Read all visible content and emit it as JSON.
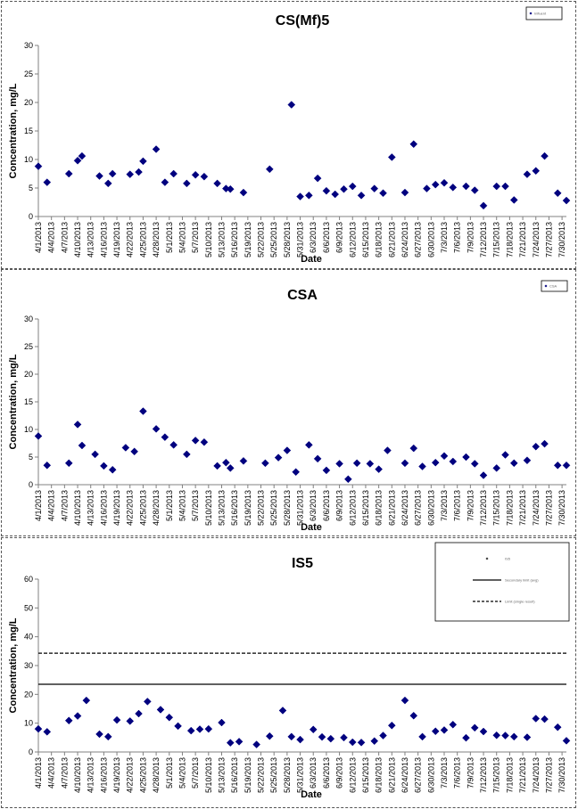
{
  "chart_data": [
    {
      "type": "scatter",
      "title": "CS(Mf)5",
      "xlabel": "Date",
      "ylabel": "Concentration, mg/L",
      "ylim": [
        0,
        30
      ],
      "yticks": [
        0,
        5,
        10,
        15,
        20,
        25,
        30
      ],
      "xlim": [
        "4/1/2013",
        "7/31/2013"
      ],
      "xtick_labels": [
        "4/1/2013",
        "4/4/2013",
        "4/7/2013",
        "4/10/2013",
        "4/13/2013",
        "4/16/2013",
        "4/19/2013",
        "4/22/2013",
        "4/25/2013",
        "4/28/2013",
        "5/1/2013",
        "5/4/2013",
        "5/7/2013",
        "5/10/2013",
        "5/13/2013",
        "5/16/2013",
        "5/19/2013",
        "5/22/2013",
        "5/25/2013",
        "5/28/2013",
        "5/31/2013",
        "6/3/2013",
        "6/6/2013",
        "6/9/2013",
        "6/12/2013",
        "6/15/2013",
        "6/18/2013",
        "6/21/2013",
        "6/24/2013",
        "6/27/2013",
        "6/30/2013",
        "7/3/2013",
        "7/6/2013",
        "7/9/2013",
        "7/12/2013",
        "7/15/2013",
        "7/18/2013",
        "7/21/2013",
        "7/24/2013",
        "7/27/2013",
        "7/30/2013"
      ],
      "legend": {
        "position": "top-right",
        "entries": [
          "Influent"
        ]
      },
      "marker_color": "#00007f",
      "series": [
        {
          "x": [
            "4/1/2013",
            "4/3/2013",
            "4/8/2013",
            "4/10/2013",
            "4/11/2013",
            "4/15/2013",
            "4/17/2013",
            "4/18/2013",
            "4/22/2013",
            "4/24/2013",
            "4/25/2013",
            "4/28/2013",
            "4/30/2013",
            "5/2/2013",
            "5/5/2013",
            "5/7/2013",
            "5/9/2013",
            "5/12/2013",
            "5/14/2013",
            "5/15/2013",
            "5/18/2013",
            "5/24/2013",
            "5/29/2013",
            "5/31/2013",
            "6/2/2013",
            "6/4/2013",
            "6/6/2013",
            "6/8/2013",
            "6/10/2013",
            "6/12/2013",
            "6/14/2013",
            "6/17/2013",
            "6/19/2013",
            "6/21/2013",
            "6/24/2013",
            "6/26/2013",
            "6/29/2013",
            "7/1/2013",
            "7/3/2013",
            "7/5/2013",
            "7/8/2013",
            "7/10/2013",
            "7/12/2013",
            "7/15/2013",
            "7/17/2013",
            "7/19/2013",
            "7/22/2013",
            "7/24/2013",
            "7/26/2013",
            "7/29/2013",
            "7/31/2013"
          ],
          "y": [
            8.8,
            6.0,
            7.5,
            9.8,
            10.6,
            7.1,
            5.8,
            7.5,
            7.4,
            7.8,
            9.7,
            11.8,
            6.0,
            7.5,
            5.8,
            7.3,
            7.0,
            5.8,
            4.9,
            4.8,
            4.2,
            8.3,
            19.6,
            3.5,
            3.7,
            6.7,
            4.5,
            3.9,
            4.8,
            5.3,
            3.7,
            4.9,
            4.1,
            10.4,
            4.2,
            12.7,
            4.9,
            5.6,
            5.9,
            5.1,
            5.3,
            4.6,
            1.9,
            5.3,
            5.3,
            2.9,
            7.4,
            8.0,
            10.6,
            4.1,
            2.8
          ]
        }
      ]
    },
    {
      "type": "scatter",
      "title": "CSA",
      "xlabel": "Date",
      "ylabel": "Concentration, mg/L",
      "ylim": [
        0,
        30
      ],
      "yticks": [
        0,
        5,
        10,
        15,
        20,
        25,
        30
      ],
      "xlim": [
        "4/1/2013",
        "7/31/2013"
      ],
      "xtick_labels": [
        "4/1/2013",
        "4/4/2013",
        "4/7/2013",
        "4/10/2013",
        "4/13/2013",
        "4/16/2013",
        "4/19/2013",
        "4/22/2013",
        "4/25/2013",
        "4/28/2013",
        "5/1/2013",
        "5/4/2013",
        "5/7/2013",
        "5/10/2013",
        "5/13/2013",
        "5/16/2013",
        "5/19/2013",
        "5/22/2013",
        "5/25/2013",
        "5/28/2013",
        "5/31/2013",
        "6/3/2013",
        "6/6/2013",
        "6/9/2013",
        "6/12/2013",
        "6/15/2013",
        "6/18/2013",
        "6/21/2013",
        "6/24/2013",
        "6/27/2013",
        "6/30/2013",
        "7/3/2013",
        "7/6/2013",
        "7/9/2013",
        "7/12/2013",
        "7/15/2013",
        "7/18/2013",
        "7/21/2013",
        "7/24/2013",
        "7/27/2013",
        "7/30/2013"
      ],
      "legend": {
        "position": "top-right",
        "entries": [
          "CSA"
        ]
      },
      "marker_color": "#00007f",
      "series": [
        {
          "x": [
            "4/1/2013",
            "4/3/2013",
            "4/8/2013",
            "4/10/2013",
            "4/11/2013",
            "4/14/2013",
            "4/16/2013",
            "4/18/2013",
            "4/21/2013",
            "4/23/2013",
            "4/25/2013",
            "4/28/2013",
            "4/30/2013",
            "5/2/2013",
            "5/5/2013",
            "5/7/2013",
            "5/9/2013",
            "5/12/2013",
            "5/14/2013",
            "5/15/2013",
            "5/18/2013",
            "5/23/2013",
            "5/26/2013",
            "5/28/2013",
            "5/30/2013",
            "6/2/2013",
            "6/4/2013",
            "6/6/2013",
            "6/9/2013",
            "6/11/2013",
            "6/13/2013",
            "6/16/2013",
            "6/18/2013",
            "6/20/2013",
            "6/24/2013",
            "6/26/2013",
            "6/28/2013",
            "7/1/2013",
            "7/3/2013",
            "7/5/2013",
            "7/8/2013",
            "7/10/2013",
            "7/12/2013",
            "7/15/2013",
            "7/17/2013",
            "7/19/2013",
            "7/22/2013",
            "7/24/2013",
            "7/26/2013",
            "7/29/2013",
            "7/31/2013"
          ],
          "y": [
            8.8,
            3.5,
            3.9,
            10.9,
            7.1,
            5.5,
            3.4,
            2.7,
            6.7,
            6.0,
            13.3,
            10.1,
            8.6,
            7.2,
            5.5,
            8.0,
            7.7,
            3.4,
            4.0,
            3.0,
            4.3,
            3.9,
            4.9,
            6.2,
            2.3,
            7.2,
            4.7,
            2.6,
            3.8,
            1.0,
            3.9,
            3.8,
            2.8,
            6.2,
            3.9,
            6.6,
            3.3,
            4.0,
            5.2,
            4.2,
            5.0,
            3.8,
            1.7,
            3.0,
            5.4,
            3.9,
            4.4,
            6.9,
            7.4,
            3.5,
            3.5
          ]
        }
      ]
    },
    {
      "type": "scatter",
      "title": "IS5",
      "xlabel": "Date",
      "ylabel": "Concentration, mg/L",
      "ylim": [
        0,
        60
      ],
      "yticks": [
        0,
        10,
        20,
        30,
        40,
        50,
        60
      ],
      "xlim": [
        "4/1/2013",
        "7/31/2013"
      ],
      "xtick_labels": [
        "4/1/2013",
        "4/4/2013",
        "4/7/2013",
        "4/10/2013",
        "4/13/2013",
        "4/16/2013",
        "4/19/2013",
        "4/22/2013",
        "4/25/2013",
        "4/28/2013",
        "5/1/2013",
        "5/4/2013",
        "5/7/2013",
        "5/10/2013",
        "5/13/2013",
        "5/16/2013",
        "5/19/2013",
        "5/22/2013",
        "5/25/2013",
        "5/28/2013",
        "5/31/2013",
        "6/3/2013",
        "6/6/2013",
        "6/9/2013",
        "6/12/2013",
        "6/15/2013",
        "6/18/2013",
        "6/21/2013",
        "6/24/2013",
        "6/27/2013",
        "6/30/2013",
        "7/3/2013",
        "7/6/2013",
        "7/9/2013",
        "7/12/2013",
        "7/15/2013",
        "7/18/2013",
        "7/21/2013",
        "7/24/2013",
        "7/27/2013",
        "7/30/2013"
      ],
      "legend": {
        "position": "top-right",
        "entries": [
          "IS5",
          "Secondary limit (avg)",
          "Limit (single result)"
        ]
      },
      "marker_color": "#00007f",
      "reference_lines": [
        {
          "value": 23.5,
          "style": "solid"
        },
        {
          "value": 34.3,
          "style": "dashed"
        }
      ],
      "series": [
        {
          "x": [
            "4/1/2013",
            "4/3/2013",
            "4/8/2013",
            "4/10/2013",
            "4/12/2013",
            "4/15/2013",
            "4/17/2013",
            "4/19/2013",
            "4/22/2013",
            "4/24/2013",
            "4/26/2013",
            "4/29/2013",
            "5/1/2013",
            "5/3/2013",
            "5/6/2013",
            "5/8/2013",
            "5/10/2013",
            "5/13/2013",
            "5/15/2013",
            "5/17/2013",
            "5/21/2013",
            "5/24/2013",
            "5/27/2013",
            "5/29/2013",
            "5/31/2013",
            "6/3/2013",
            "6/5/2013",
            "6/7/2013",
            "6/10/2013",
            "6/12/2013",
            "6/14/2013",
            "6/17/2013",
            "6/19/2013",
            "6/21/2013",
            "6/24/2013",
            "6/26/2013",
            "6/28/2013",
            "7/1/2013",
            "7/3/2013",
            "7/5/2013",
            "7/8/2013",
            "7/10/2013",
            "7/12/2013",
            "7/15/2013",
            "7/17/2013",
            "7/19/2013",
            "7/22/2013",
            "7/24/2013",
            "7/26/2013",
            "7/29/2013",
            "7/31/2013"
          ],
          "y": [
            8.0,
            7.0,
            10.9,
            12.5,
            17.9,
            6.2,
            5.3,
            11.1,
            10.7,
            13.3,
            17.5,
            14.7,
            12.0,
            9.0,
            7.4,
            7.9,
            8.0,
            10.2,
            3.2,
            3.6,
            2.6,
            5.5,
            14.4,
            5.3,
            4.3,
            7.8,
            5.2,
            4.6,
            5.0,
            3.4,
            3.3,
            3.8,
            5.7,
            9.2,
            17.9,
            12.6,
            5.3,
            7.2,
            7.6,
            9.5,
            4.9,
            8.4,
            7.1,
            5.8,
            5.7,
            5.3,
            5.1,
            11.6,
            11.4,
            8.6,
            3.9
          ]
        }
      ]
    }
  ]
}
